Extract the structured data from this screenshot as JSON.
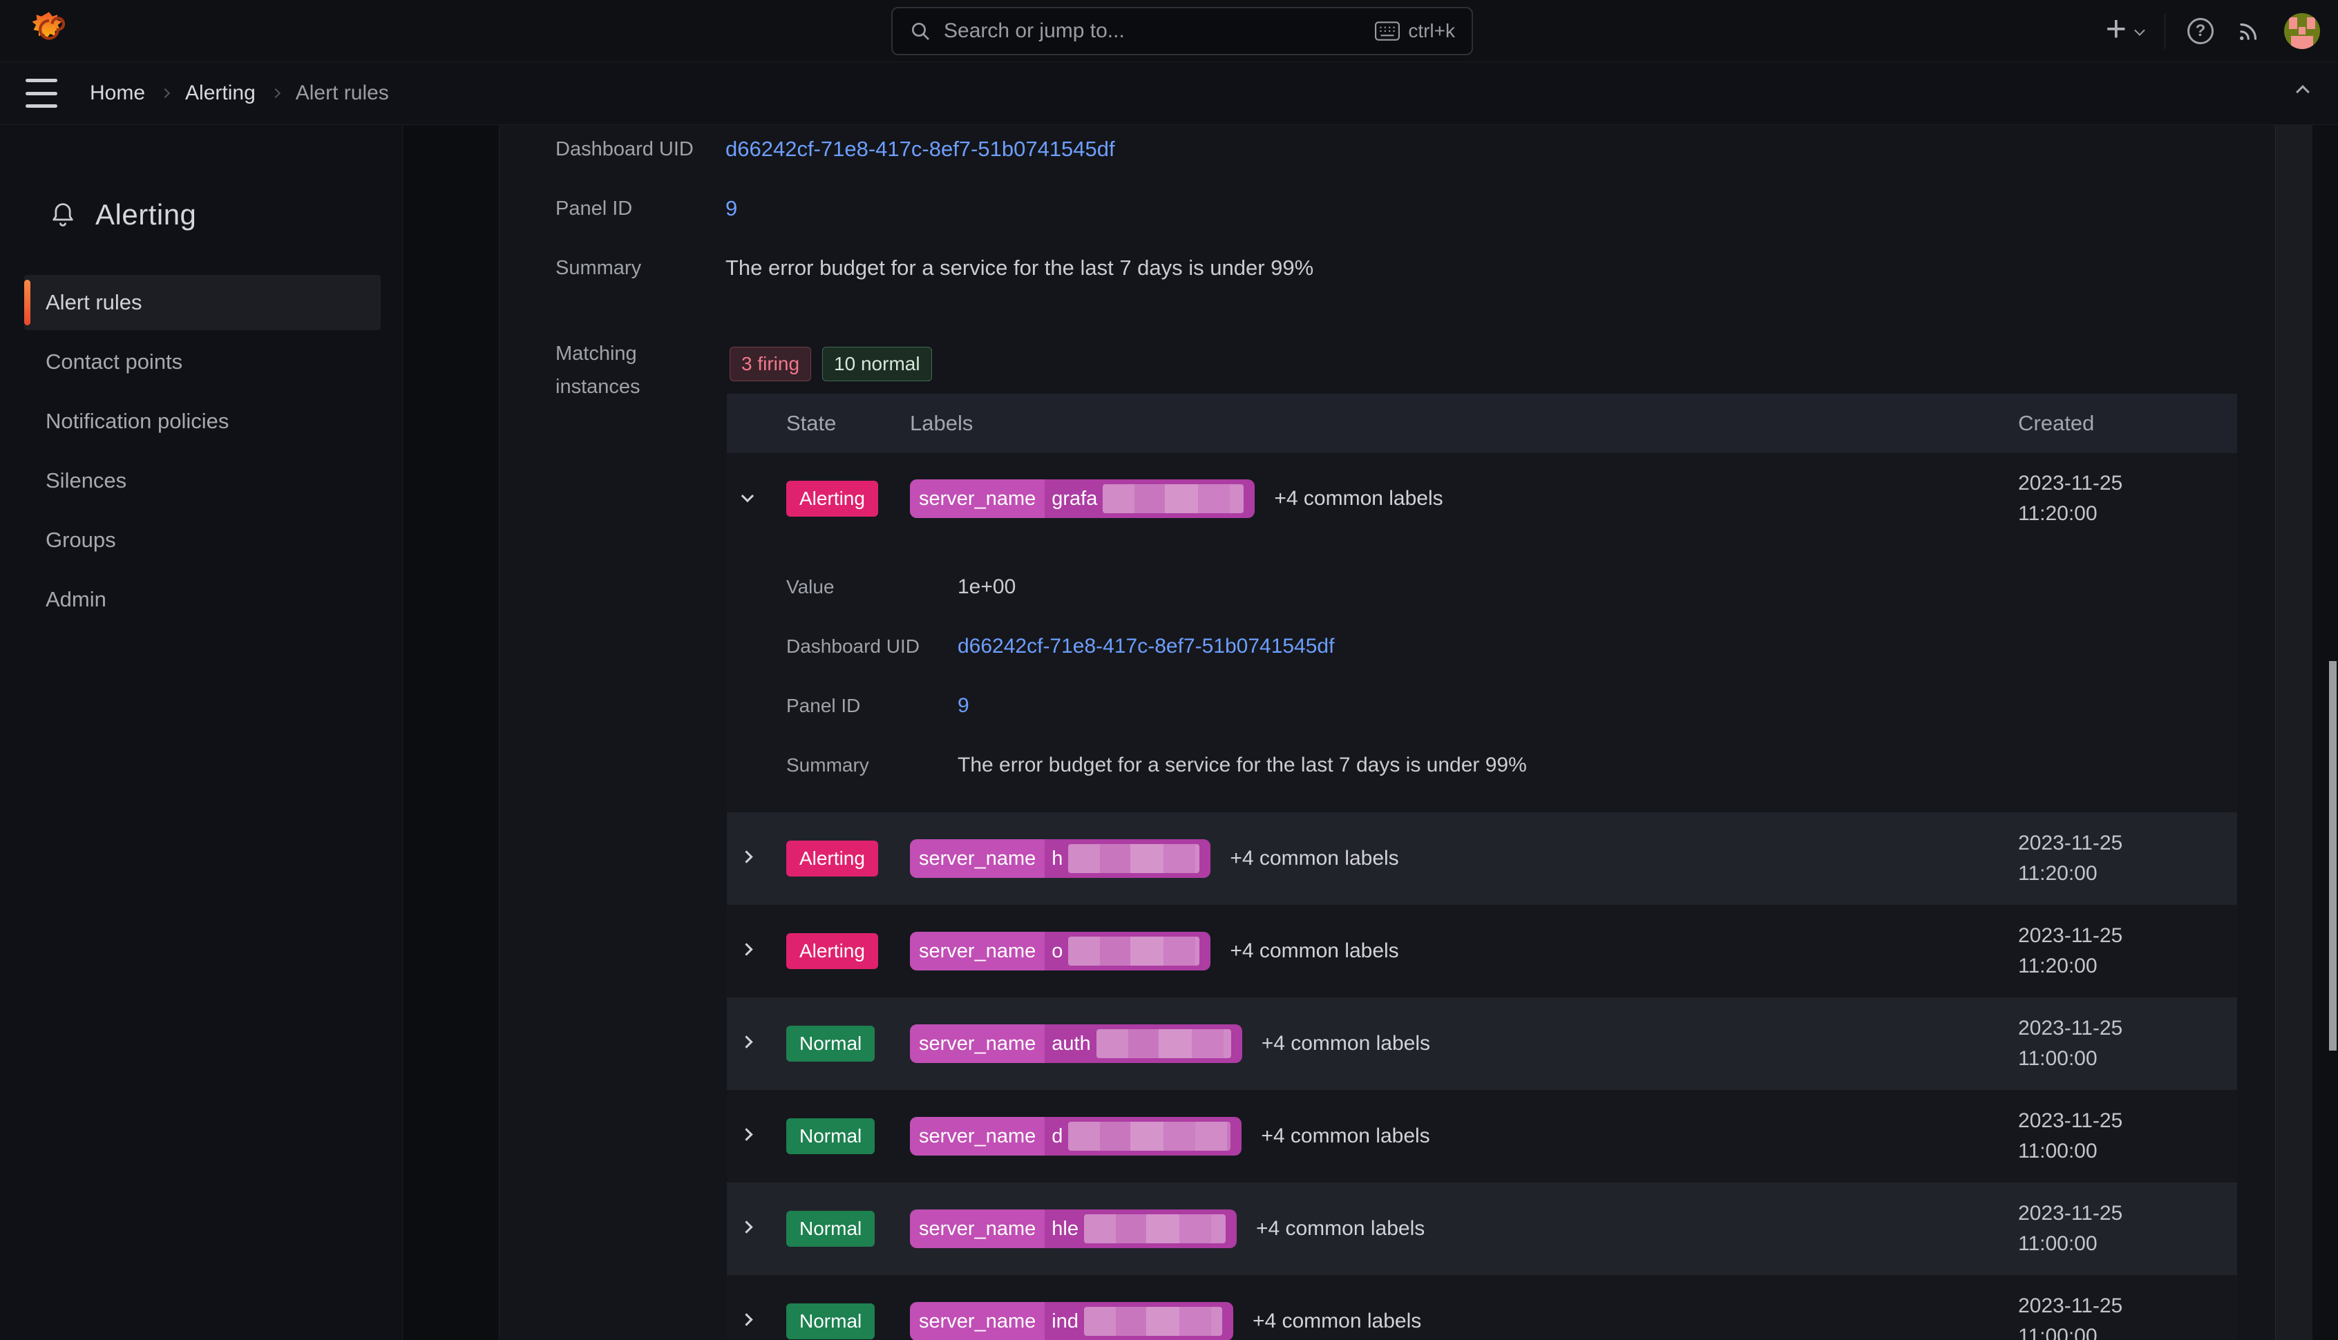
{
  "topbar": {
    "search": {
      "placeholder": "Search or jump to...",
      "shortcut": "ctrl+k"
    },
    "plus_glyph": "+",
    "help_glyph": "?",
    "icons": [
      "grafana-logo",
      "search-icon",
      "keyboard-icon",
      "plus-icon",
      "chevron-down-icon",
      "help-icon",
      "news-icon",
      "user-avatar"
    ]
  },
  "breadcrumb": {
    "items": [
      "Home",
      "Alerting",
      "Alert rules"
    ]
  },
  "sidebar": {
    "title": "Alerting",
    "items": [
      {
        "label": "Alert rules",
        "active": true
      },
      {
        "label": "Contact points",
        "active": false
      },
      {
        "label": "Notification policies",
        "active": false
      },
      {
        "label": "Silences",
        "active": false
      },
      {
        "label": "Groups",
        "active": false
      },
      {
        "label": "Admin",
        "active": false
      }
    ]
  },
  "rule_detail": {
    "fields": [
      {
        "label": "Dashboard UID",
        "value": "d66242cf-71e8-417c-8ef7-51b0741545df",
        "type": "link"
      },
      {
        "label": "Panel ID",
        "value": "9",
        "type": "link"
      },
      {
        "label": "Summary",
        "value": "The error budget for a service for the last 7 days is under 99%",
        "type": "text"
      }
    ],
    "matching_instances": {
      "label": "Matching instances",
      "badges": [
        {
          "text": "3 firing",
          "kind": "firing"
        },
        {
          "text": "10 normal",
          "kind": "normal"
        }
      ]
    }
  },
  "instances_table": {
    "columns": [
      "State",
      "Labels",
      "Created"
    ],
    "rows": [
      {
        "state": "Alerting",
        "label_key": "server_name",
        "label_value_prefix": "grafa",
        "redacted": true,
        "blur_width": 204,
        "common_labels": "+4 common labels",
        "created_date": "2023-11-25",
        "created_time": "11:20:00",
        "expanded": true,
        "details": [
          {
            "label": "Value",
            "value": "1e+00",
            "type": "text"
          },
          {
            "label": "Dashboard UID",
            "value": "d66242cf-71e8-417c-8ef7-51b0741545df",
            "type": "link"
          },
          {
            "label": "Panel ID",
            "value": "9",
            "type": "link"
          },
          {
            "label": "Summary",
            "value": "The error budget for a service for the last 7 days is under 99%",
            "type": "text"
          }
        ]
      },
      {
        "state": "Alerting",
        "label_key": "server_name",
        "label_value_prefix": "h",
        "redacted": true,
        "blur_width": 190,
        "common_labels": "+4 common labels",
        "created_date": "2023-11-25",
        "created_time": "11:20:00",
        "expanded": false
      },
      {
        "state": "Alerting",
        "label_key": "server_name",
        "label_value_prefix": "o",
        "redacted": true,
        "blur_width": 190,
        "common_labels": "+4 common labels",
        "created_date": "2023-11-25",
        "created_time": "11:20:00",
        "expanded": false
      },
      {
        "state": "Normal",
        "label_key": "server_name",
        "label_value_prefix": "auth",
        "redacted": true,
        "blur_width": 195,
        "common_labels": "+4 common labels",
        "created_date": "2023-11-25",
        "created_time": "11:00:00",
        "expanded": false
      },
      {
        "state": "Normal",
        "label_key": "server_name",
        "label_value_prefix": "d",
        "redacted": true,
        "blur_width": 235,
        "common_labels": "+4 common labels",
        "created_date": "2023-11-25",
        "created_time": "11:00:00",
        "expanded": false
      },
      {
        "state": "Normal",
        "label_key": "server_name",
        "label_value_prefix": "hle",
        "redacted": true,
        "blur_width": 205,
        "common_labels": "+4 common labels",
        "created_date": "2023-11-25",
        "created_time": "11:00:00",
        "expanded": false
      },
      {
        "state": "Normal",
        "label_key": "server_name",
        "label_value_prefix": "ind",
        "redacted": true,
        "blur_width": 200,
        "common_labels": "+4 common labels",
        "created_date": "2023-11-25",
        "created_time": "11:00:00",
        "expanded": false
      }
    ]
  },
  "colors": {
    "alerting_badge": "#e0226e",
    "normal_badge": "#1d8150",
    "firing_chip_text": "#f0788c",
    "normal_chip_text": "#d8e7da",
    "label_pill_key": "#c14fb5",
    "label_pill_value": "#ad3ca3",
    "link_blue": "#6e9fff",
    "accent_orange": "#f0602f",
    "page_background": "#13151a"
  }
}
